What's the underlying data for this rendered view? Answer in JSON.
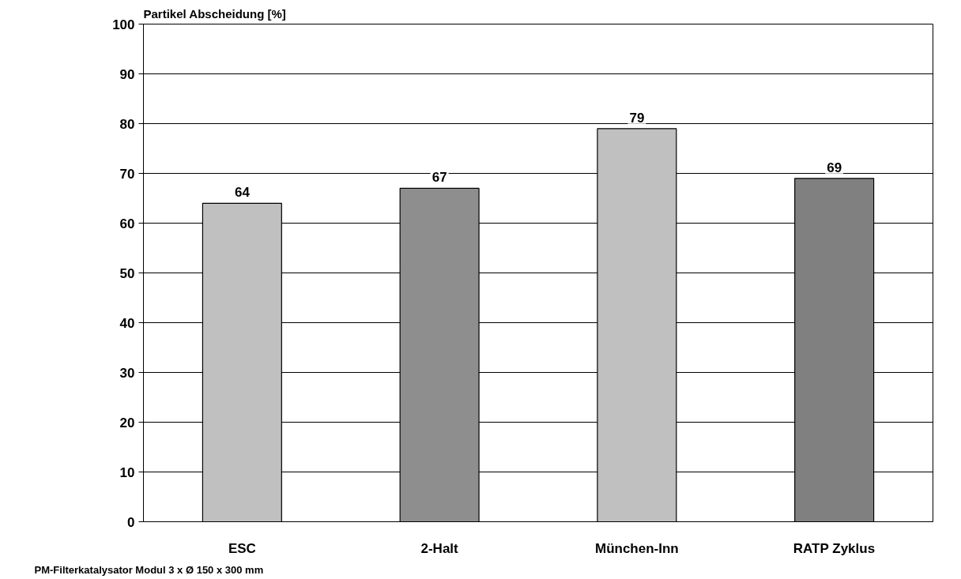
{
  "chart_data": {
    "type": "bar",
    "ylabel": "Partikel Abscheidung [%]",
    "categories": [
      "ESC",
      "2-Halt",
      "München-Inn",
      "RATP Zyklus"
    ],
    "values": [
      64,
      67,
      79,
      69
    ],
    "colors": [
      "#c0c0c0",
      "#8e8e8e",
      "#c0c0c0",
      "#808080"
    ],
    "ylim": [
      0,
      100
    ],
    "yticks": [
      0,
      10,
      20,
      30,
      40,
      50,
      60,
      70,
      80,
      90,
      100
    ],
    "grid": "y",
    "data_labels": true,
    "annotations": [
      "PM-Filterkatalysator Modul 3 x Ø 150 x 300 mm"
    ]
  }
}
